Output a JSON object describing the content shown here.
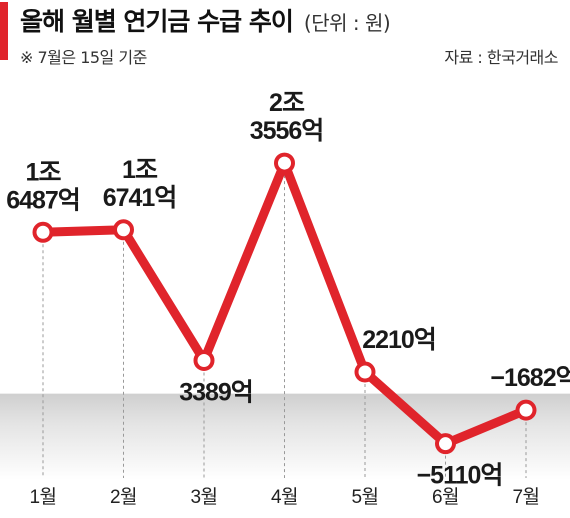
{
  "header": {
    "title": "올해 월별 연기금 수급 추이",
    "unit": "(단위 : 원)",
    "note": "※ 7월은 15일 기준",
    "source": "자료 : 한국거래소"
  },
  "colors": {
    "accent": "#e0242b",
    "line": "#e0242b",
    "negative_zone": "#d9d9d9"
  },
  "chart_data": {
    "type": "line",
    "categories": [
      "1월",
      "2월",
      "3월",
      "4월",
      "5월",
      "6월",
      "7월"
    ],
    "values": [
      16487,
      16741,
      3389,
      23556,
      2210,
      -5110,
      -1682
    ],
    "unit": "억원",
    "data_labels": [
      [
        "1조",
        "6487억"
      ],
      [
        "1조",
        "6741억"
      ],
      [
        "3389억"
      ],
      [
        "2조",
        "3556억"
      ],
      [
        "2210억"
      ],
      [
        "−5110억"
      ],
      [
        "−1682억"
      ]
    ],
    "ylim": [
      -7800,
      30000
    ],
    "grid": false,
    "legend": "none",
    "shaded_negative_region": true
  }
}
